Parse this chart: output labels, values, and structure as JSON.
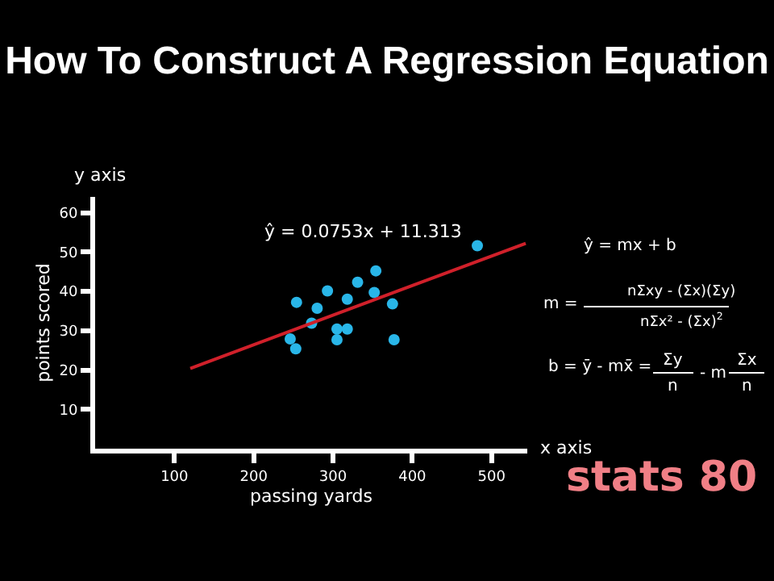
{
  "chart_data": {
    "type": "scatter",
    "title": "How To Construct A Regression Equation",
    "xlabel": "passing yards",
    "ylabel": "points scored",
    "xlim": [
      0,
      545
    ],
    "ylim": [
      0,
      64
    ],
    "xticks": [
      100,
      200,
      300,
      400,
      500
    ],
    "yticks": [
      10,
      20,
      30,
      40,
      50,
      60
    ],
    "series": [
      {
        "marker": "circle",
        "color": "#29b6e8",
        "x": [
          254,
          280,
          273,
          246,
          253,
          293,
          305,
          305,
          318,
          318,
          331,
          354,
          352,
          375,
          377,
          482
        ],
        "values": [
          37.2,
          35.7,
          31.9,
          27.9,
          25.4,
          40.1,
          30.4,
          27.7,
          38.0,
          30.4,
          42.3,
          45.2,
          39.7,
          36.8,
          27.7,
          51.6
        ]
      },
      {
        "type": "line",
        "color": "#d0202a",
        "x": [
          120,
          543
        ],
        "values": [
          20.4,
          52.2
        ]
      }
    ],
    "annotations": [
      "ŷ = 0.0753x + 11.313",
      "y axis",
      "x axis",
      "ŷ = mx + b",
      "m =",
      "nΣxy - (Σx)(Σy)",
      "nΣx² - (Σx)$^{2}$",
      "b = ȳ - mx̄ =",
      "Σy",
      "n",
      "- m",
      "Σx",
      "n",
      "stats 80"
    ]
  }
}
